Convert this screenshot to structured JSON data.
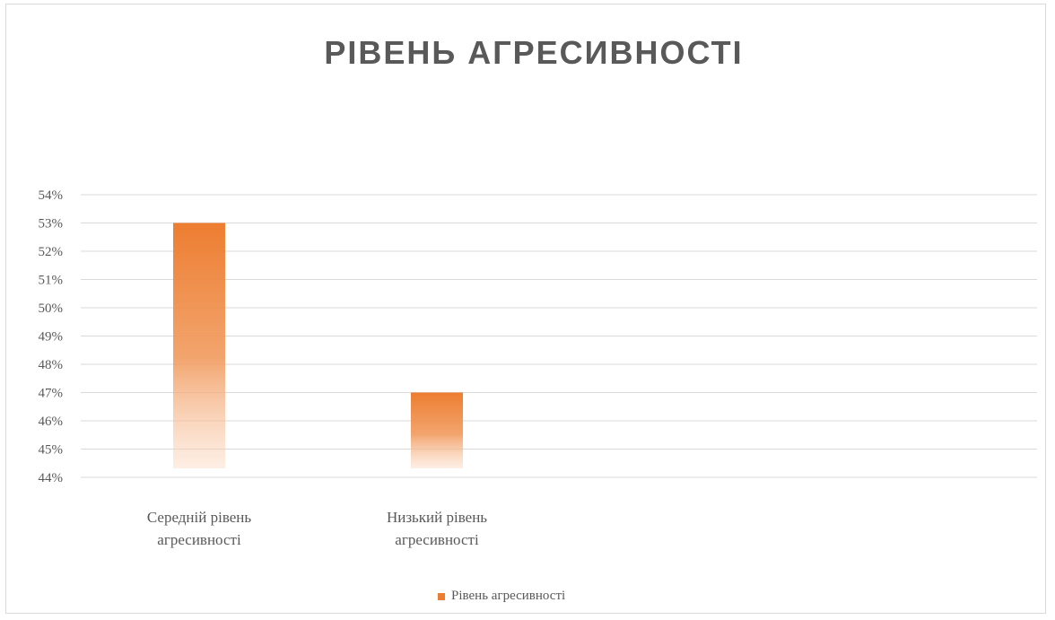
{
  "chart_data": {
    "type": "bar",
    "title": "РІВЕНЬ АГРЕСИВНОСТІ",
    "categories": [
      [
        "Середній рівень",
        "агресивності"
      ],
      [
        "Низький рівень",
        "агресивності"
      ]
    ],
    "series": [
      {
        "name": "Рівень агресивності",
        "values": [
          53,
          47
        ],
        "color": "#ed7d31"
      }
    ],
    "ylim": [
      44,
      54
    ],
    "y_ticks": [
      "44%",
      "45%",
      "46%",
      "47%",
      "48%",
      "49%",
      "50%",
      "51%",
      "52%",
      "53%",
      "54%"
    ],
    "grid": true,
    "legend": "bottom"
  }
}
